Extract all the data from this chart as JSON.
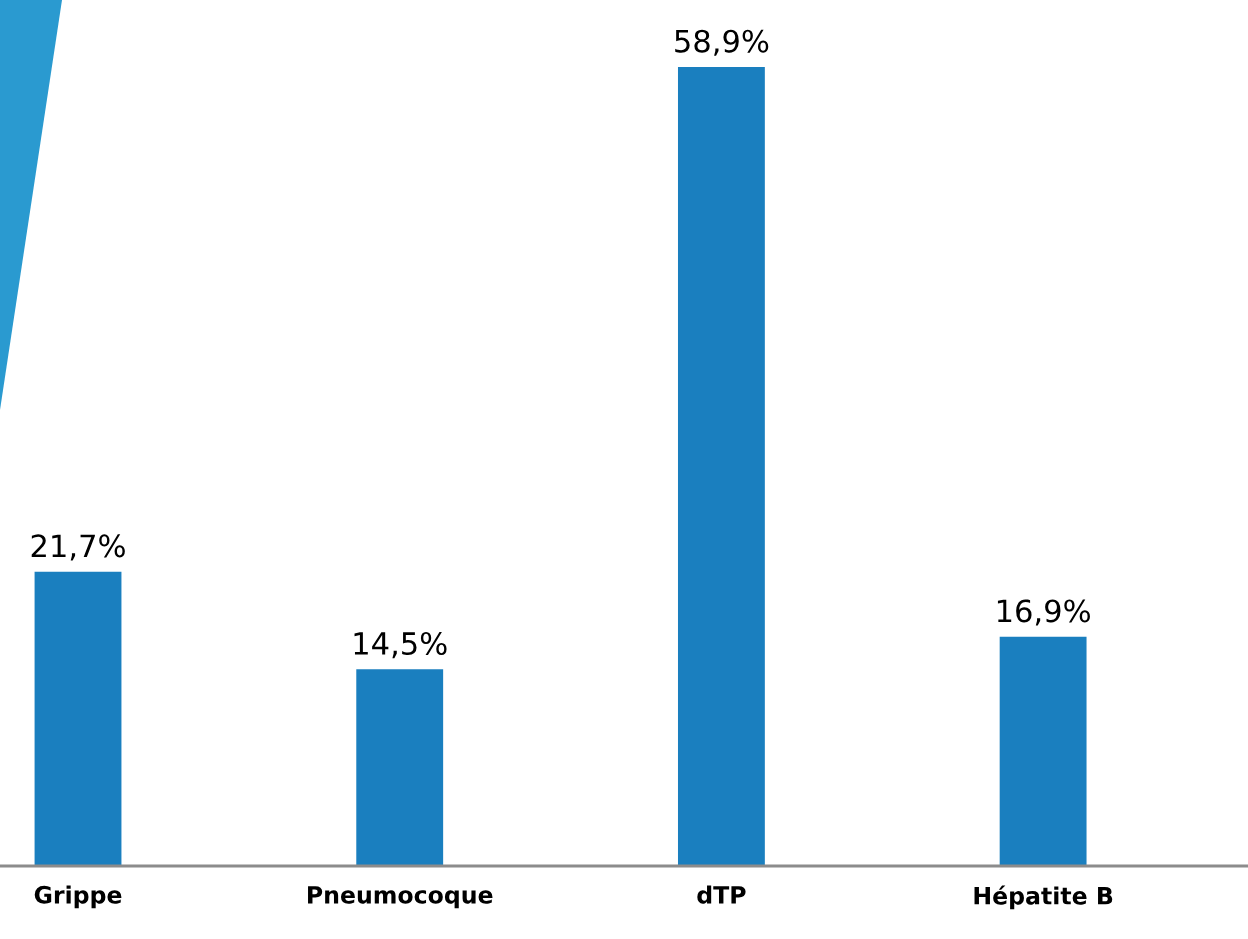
{
  "chart_data": {
    "type": "bar",
    "categories": [
      "Grippe",
      "Pneumocoque",
      "dTP",
      "Hépatite B"
    ],
    "values": [
      21.7,
      14.5,
      58.9,
      16.9
    ],
    "value_labels": [
      "21,7%",
      "14,5%",
      "58,9%",
      "16,9%"
    ],
    "color": "#1a7fbf",
    "grid": false,
    "legend": false
  }
}
